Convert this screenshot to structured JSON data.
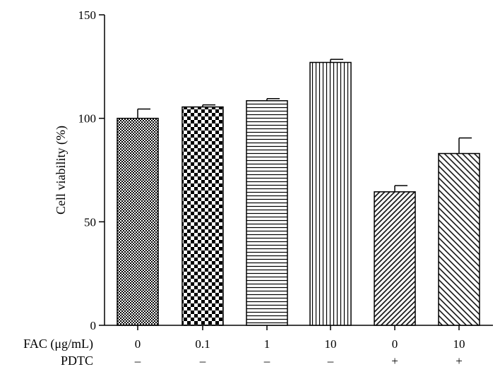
{
  "chart_data": {
    "type": "bar",
    "ylabel": "Cell viability (%)",
    "ylim": [
      0,
      150
    ],
    "yticks": [
      0,
      50,
      100,
      150
    ],
    "grid": false,
    "categories": [
      "0",
      "0.1",
      "1",
      "10",
      "0",
      "10"
    ],
    "row_labels": {
      "fac": "FAC (μg/mL)",
      "pdtc": "PDTC"
    },
    "pdtc": [
      "–",
      "–",
      "–",
      "–",
      "+",
      "+"
    ],
    "values": [
      100,
      105.5,
      108.5,
      127,
      64.5,
      83
    ],
    "errors": [
      4.5,
      1.0,
      1.0,
      1.5,
      3.0,
      7.5
    ],
    "patterns": [
      "fine-check",
      "checkerboard",
      "horizontal",
      "vertical",
      "diag-dense",
      "diag-sparse"
    ]
  }
}
